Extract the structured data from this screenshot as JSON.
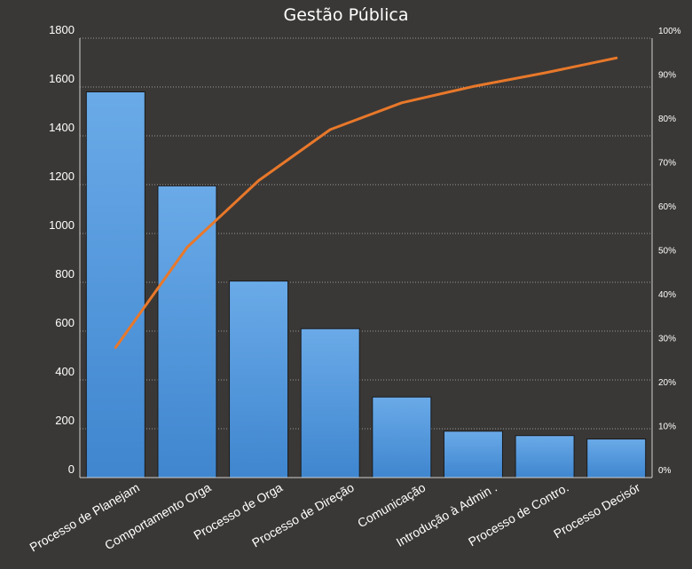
{
  "chart_data": {
    "type": "bar",
    "title": "Gestão Pública",
    "categories": [
      "Processo de Planejam",
      "Comportamento  Orga",
      "Processo de Orga",
      "Processo de Direção",
      "Comunicação",
      "Introdução  à Admin .",
      "Processo de Contro.",
      "Processo Decisór"
    ],
    "series": [
      {
        "type": "bar",
        "values": [
          1580,
          1195,
          805,
          610,
          330,
          190,
          172,
          158
        ]
      },
      {
        "type": "line",
        "axis": "secondary",
        "values": [
          29.6,
          52.4,
          67.6,
          79.2,
          85.3,
          89.0,
          92.1,
          95.5
        ]
      }
    ],
    "ylim": [
      0,
      1800
    ],
    "yticks": [
      "0",
      "200",
      "400",
      "600",
      "800",
      "1000",
      "1200",
      "1400",
      "1600",
      "1800"
    ],
    "y2lim": [
      0,
      100
    ],
    "y2ticks": [
      "0%",
      "10%",
      "20%",
      "30%",
      "40%",
      "50%",
      "60%",
      "70%",
      "80%",
      "90%",
      "100%"
    ],
    "grid": true,
    "colors": {
      "bar": "#4a90d9",
      "bar_top": "#6aaae8",
      "line": "#e8782a",
      "background": "#3a3836",
      "grid": "#bbbbbb"
    }
  }
}
